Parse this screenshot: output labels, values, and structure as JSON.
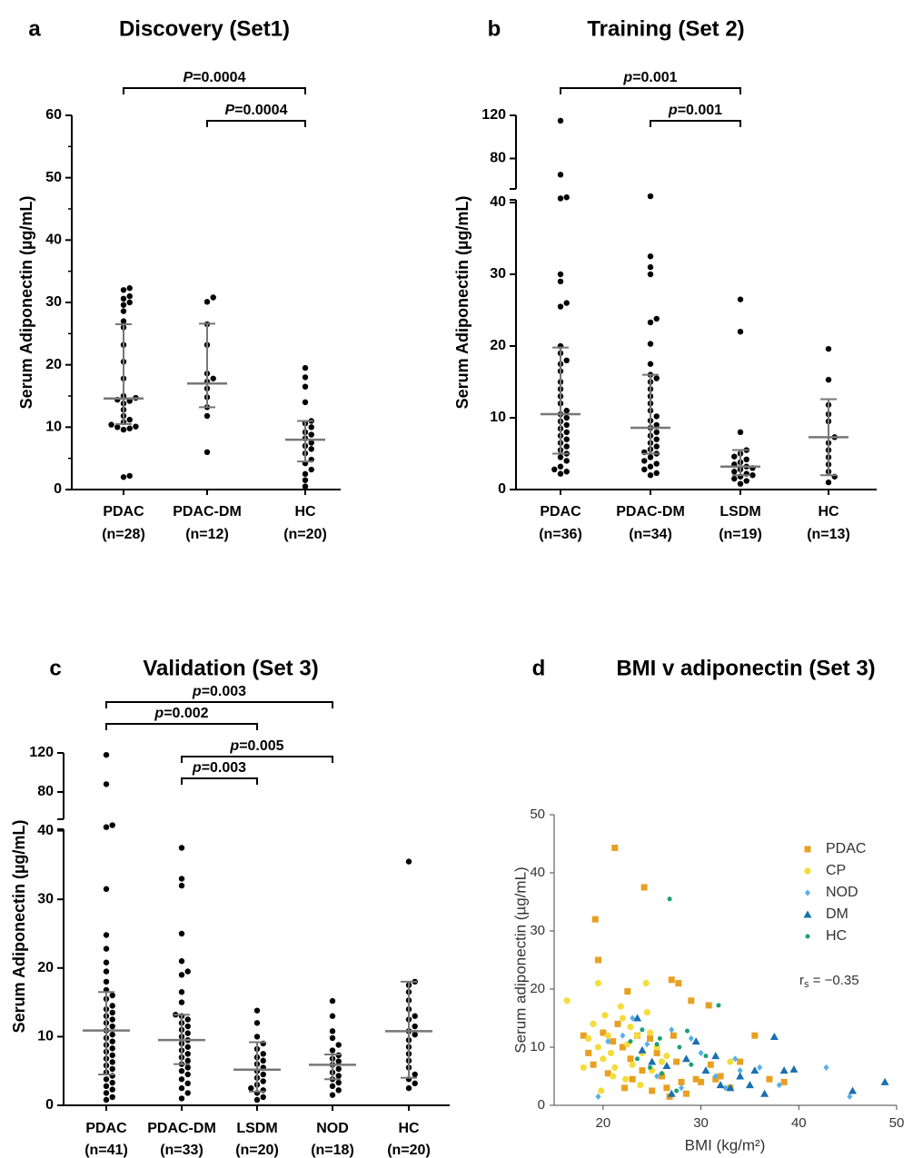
{
  "chart_data": [
    {
      "panel": "a",
      "type": "scatter",
      "title": "Discovery (Set1)",
      "ylabel": "Serum Adiponectin (µg/mL)",
      "ylim": [
        0,
        60
      ],
      "yticks": [
        0,
        10,
        20,
        30,
        40,
        50,
        60
      ],
      "groups": [
        {
          "label": "PDAC",
          "n": "(n=28)",
          "median": 14.6,
          "q1": 10.5,
          "q3": 26.5,
          "values": [
            2.0,
            2.2,
            9.6,
            9.8,
            10.0,
            10.1,
            10.4,
            10.8,
            11.2,
            11.8,
            12.8,
            13.8,
            14.2,
            14.4,
            14.7,
            15.0,
            17.8,
            20.5,
            23.2,
            26.0,
            27.0,
            28.6,
            29.6,
            30.0,
            30.6,
            31.0,
            32.0,
            32.3
          ]
        },
        {
          "label": "PDAC-DM",
          "n": "(n=12)",
          "median": 17.0,
          "q1": 13.2,
          "q3": 26.6,
          "values": [
            6.0,
            11.8,
            13.2,
            14.8,
            16.2,
            17.3,
            17.8,
            18.6,
            23.2,
            26.5,
            30.1,
            30.8
          ]
        },
        {
          "label": "HC",
          "n": "(n=20)",
          "median": 8.0,
          "q1": 4.5,
          "q3": 11.0,
          "values": [
            0.5,
            1.5,
            2.5,
            3.2,
            4.2,
            4.8,
            5.8,
            6.5,
            7.0,
            7.5,
            8.2,
            8.8,
            9.2,
            10.0,
            10.6,
            11.0,
            14.0,
            16.5,
            18.0,
            19.5
          ]
        }
      ],
      "brackets": [
        {
          "from": 0,
          "to": 2,
          "label": "=0.0004",
          "prefix": "P"
        },
        {
          "from": 1,
          "to": 2,
          "label": "=0.0004",
          "prefix": "P"
        }
      ]
    },
    {
      "panel": "b",
      "type": "scatter",
      "title": "Training (Set 2)",
      "ylabel": "Serum Adiponectin (µg/mL)",
      "ylim": [
        0,
        120
      ],
      "broken_axis": {
        "lower": [
          0,
          40
        ],
        "upper": [
          40,
          120
        ]
      },
      "yticks": [
        0,
        10,
        20,
        30,
        40,
        80,
        120
      ],
      "groups": [
        {
          "label": "PDAC",
          "n": "(n=36)",
          "median": 10.5,
          "q1": 5.0,
          "q3": 19.8,
          "values": [
            2.2,
            2.5,
            2.8,
            3.2,
            4.0,
            4.5,
            5.0,
            5.5,
            6.0,
            6.5,
            7.0,
            7.5,
            8.0,
            8.5,
            9.0,
            9.5,
            10.0,
            10.5,
            11.0,
            12.0,
            13.0,
            14.0,
            15.0,
            16.5,
            17.5,
            18.0,
            19.0,
            20.0,
            25.5,
            26.0,
            29.0,
            30.0,
            43.0,
            44.0,
            65.0,
            115.0
          ]
        },
        {
          "label": "PDAC-DM",
          "n": "(n=34)",
          "median": 8.6,
          "q1": 5.0,
          "q3": 16.0,
          "values": [
            2.0,
            2.3,
            2.8,
            3.2,
            3.6,
            4.0,
            4.5,
            5.0,
            5.2,
            5.6,
            6.0,
            6.5,
            7.0,
            7.5,
            8.0,
            8.6,
            9.0,
            9.6,
            10.2,
            11.0,
            12.0,
            13.0,
            14.0,
            15.0,
            15.5,
            16.0,
            17.5,
            20.3,
            23.3,
            23.8,
            30.0,
            31.0,
            32.5,
            45.0
          ]
        },
        {
          "label": "LSDM",
          "n": "(n=19)",
          "median": 3.2,
          "q1": 2.0,
          "q3": 5.5,
          "values": [
            0.8,
            1.2,
            1.5,
            1.8,
            2.0,
            2.2,
            2.5,
            2.8,
            3.0,
            3.2,
            3.5,
            3.8,
            4.2,
            4.6,
            5.0,
            5.5,
            8.0,
            22.0,
            26.5
          ]
        },
        {
          "label": "HC",
          "n": "(n=13)",
          "median": 7.3,
          "q1": 2.0,
          "q3": 12.6,
          "values": [
            1.0,
            1.8,
            2.5,
            3.5,
            4.5,
            5.5,
            6.5,
            7.3,
            9.5,
            10.5,
            11.8,
            15.3,
            19.6
          ]
        }
      ],
      "brackets": [
        {
          "from": 0,
          "to": 2,
          "label": "=0.001",
          "prefix": "p"
        },
        {
          "from": 1,
          "to": 2,
          "label": "=0.001",
          "prefix": "p"
        }
      ]
    },
    {
      "panel": "c",
      "type": "scatter",
      "title": "Validation (Set 3)",
      "ylabel": "Serum  Adiponectin (µg/mL)",
      "ylim": [
        0,
        120
      ],
      "broken_axis": {
        "lower": [
          0,
          40
        ],
        "upper": [
          40,
          120
        ]
      },
      "yticks": [
        0,
        10,
        20,
        30,
        40,
        80,
        120
      ],
      "groups": [
        {
          "label": "PDAC",
          "n": "(n=41)",
          "median": 10.9,
          "q1": 4.5,
          "q3": 16.5,
          "values": [
            0.8,
            1.2,
            1.8,
            2.3,
            2.8,
            3.3,
            3.8,
            4.3,
            4.8,
            5.3,
            5.8,
            6.3,
            6.8,
            7.3,
            7.8,
            8.3,
            8.8,
            9.3,
            9.8,
            10.3,
            10.9,
            11.5,
            12.0,
            12.5,
            13.0,
            13.5,
            14.0,
            14.5,
            15.5,
            16.0,
            16.8,
            18.0,
            19.5,
            20.8,
            22.8,
            24.8,
            31.5,
            44.0,
            46.0,
            88.0,
            118.0
          ]
        },
        {
          "label": "PDAC-DM",
          "n": "(n=33)",
          "median": 9.5,
          "q1": 6.0,
          "q3": 13.2,
          "values": [
            1.0,
            1.8,
            2.5,
            3.2,
            3.8,
            4.5,
            5.0,
            5.5,
            6.0,
            6.5,
            7.0,
            7.5,
            8.0,
            8.5,
            9.0,
            9.5,
            10.0,
            10.5,
            11.0,
            11.5,
            12.0,
            12.5,
            13.0,
            13.2,
            15.0,
            16.5,
            19.0,
            19.5,
            21.0,
            25.0,
            32.0,
            33.0,
            37.5
          ]
        },
        {
          "label": "LSDM",
          "n": "(n=20)",
          "median": 5.2,
          "q1": 2.0,
          "q3": 9.2,
          "values": [
            0.8,
            1.2,
            1.8,
            2.2,
            2.5,
            3.0,
            3.5,
            4.0,
            4.5,
            5.0,
            5.5,
            6.0,
            6.5,
            7.0,
            7.5,
            8.2,
            9.0,
            10.0,
            12.0,
            13.8
          ]
        },
        {
          "label": "NOD",
          "n": "(n=18)",
          "median": 5.9,
          "q1": 3.8,
          "q3": 7.4,
          "values": [
            1.5,
            2.2,
            2.8,
            3.3,
            3.8,
            4.3,
            4.8,
            5.3,
            5.9,
            6.4,
            6.8,
            7.3,
            8.0,
            8.8,
            9.8,
            10.8,
            13.0,
            15.2
          ]
        },
        {
          "label": "HC",
          "n": "(n=20)",
          "median": 10.8,
          "q1": 4.0,
          "q3": 18.0,
          "values": [
            2.5,
            3.2,
            3.8,
            4.5,
            5.5,
            6.5,
            7.5,
            8.5,
            9.5,
            10.3,
            10.8,
            11.5,
            12.5,
            13.0,
            14.0,
            15.3,
            16.5,
            17.5,
            18.0,
            35.5
          ]
        }
      ],
      "brackets": [
        {
          "from": 0,
          "to": 3,
          "label": "=0.003",
          "prefix": "p"
        },
        {
          "from": 0,
          "to": 2,
          "label": "=0.002",
          "prefix": "p"
        },
        {
          "from": 1,
          "to": 3,
          "label": "=0.005",
          "prefix": "p"
        },
        {
          "from": 1,
          "to": 2,
          "label": "=0.003",
          "prefix": "p"
        }
      ]
    },
    {
      "panel": "d",
      "type": "scatter",
      "title": "BMI v adiponectin (Set 3)",
      "xlabel": "BMI (kg/m²)",
      "ylabel": "Serum adiponectin (µg/mL)",
      "xlim": [
        15,
        50
      ],
      "ylim": [
        0,
        50
      ],
      "xticks": [
        20,
        30,
        40,
        50
      ],
      "yticks": [
        0,
        10,
        20,
        30,
        40,
        50
      ],
      "annotation": "r",
      "annotation_sub": "s",
      "annotation_rest": " = −0.35",
      "legend_position": "top-right",
      "series": [
        {
          "name": "PDAC",
          "color": "#e8a020",
          "marker": "square",
          "points": [
            [
              21.2,
              44.3
            ],
            [
              24.2,
              37.5
            ],
            [
              19.2,
              32.0
            ],
            [
              19.5,
              25.0
            ],
            [
              27.0,
              21.6
            ],
            [
              27.7,
              21.0
            ],
            [
              22.5,
              19.6
            ],
            [
              29.0,
              18.0
            ],
            [
              30.8,
              17.2
            ],
            [
              35.5,
              12.0
            ],
            [
              18.0,
              12.0
            ],
            [
              18.5,
              9.0
            ],
            [
              19.0,
              7.0
            ],
            [
              20.0,
              12.5
            ],
            [
              21.0,
              11.0
            ],
            [
              21.5,
              14.0
            ],
            [
              22.0,
              10.0
            ],
            [
              22.8,
              8.0
            ],
            [
              23.5,
              12.0
            ],
            [
              24.0,
              6.0
            ],
            [
              24.8,
              11.5
            ],
            [
              25.5,
              9.0
            ],
            [
              26.0,
              5.0
            ],
            [
              26.5,
              3.0
            ],
            [
              27.2,
              12.0
            ],
            [
              27.5,
              7.5
            ],
            [
              28.0,
              4.0
            ],
            [
              28.5,
              2.0
            ],
            [
              29.5,
              4.5
            ],
            [
              30.0,
              4.0
            ],
            [
              31.0,
              7.0
            ],
            [
              31.5,
              4.5
            ],
            [
              32.0,
              5.0
            ],
            [
              33.0,
              3.0
            ],
            [
              34.0,
              7.5
            ],
            [
              37.0,
              4.5
            ],
            [
              38.5,
              4.0
            ],
            [
              20.5,
              5.5
            ],
            [
              22.2,
              3.0
            ],
            [
              25.0,
              2.5
            ],
            [
              26.8,
              1.5
            ],
            [
              23.0,
              4.5
            ]
          ]
        },
        {
          "name": "CP",
          "color": "#f5dc3a",
          "marker": "circle",
          "points": [
            [
              16.3,
              18.0
            ],
            [
              19.5,
              21.0
            ],
            [
              24.4,
              21.0
            ],
            [
              18.0,
              6.5
            ],
            [
              19.0,
              14.0
            ],
            [
              19.5,
              10.0
            ],
            [
              20.0,
              8.0
            ],
            [
              20.5,
              12.0
            ],
            [
              21.0,
              5.0
            ],
            [
              21.8,
              17.0
            ],
            [
              22.0,
              15.0
            ],
            [
              22.5,
              10.5
            ],
            [
              23.0,
              7.0
            ],
            [
              23.5,
              12.0
            ],
            [
              24.0,
              9.0
            ],
            [
              24.5,
              16.0
            ],
            [
              25.0,
              6.0
            ],
            [
              25.5,
              10.0
            ],
            [
              26.0,
              7.5
            ],
            [
              19.8,
              2.5
            ],
            [
              21.2,
              6.5
            ],
            [
              22.8,
              13.5
            ],
            [
              18.5,
              11.5
            ],
            [
              20.2,
              15.5
            ],
            [
              23.8,
              3.5
            ],
            [
              24.8,
              12.5
            ],
            [
              26.5,
              8.5
            ],
            [
              33.0,
              7.5
            ],
            [
              20.8,
              9.0
            ],
            [
              22.3,
              4.5
            ]
          ]
        },
        {
          "name": "NOD",
          "color": "#55b0e8",
          "marker": "diamond",
          "points": [
            [
              19.5,
              1.5
            ],
            [
              20.5,
              11.0
            ],
            [
              23.0,
              15.0
            ],
            [
              24.5,
              10.5
            ],
            [
              25.5,
              5.0
            ],
            [
              27.0,
              13.0
            ],
            [
              29.0,
              11.5
            ],
            [
              30.0,
              9.0
            ],
            [
              31.5,
              5.0
            ],
            [
              32.5,
              3.0
            ],
            [
              34.0,
              6.0
            ],
            [
              36.0,
              6.5
            ],
            [
              38.0,
              3.5
            ],
            [
              42.8,
              6.5
            ],
            [
              45.2,
              1.5
            ],
            [
              28.0,
              3.0
            ],
            [
              33.5,
              8.0
            ],
            [
              22.0,
              12.0
            ]
          ]
        },
        {
          "name": "DM",
          "color": "#1a6fb0",
          "marker": "triangle",
          "points": [
            [
              23.5,
              15.0
            ],
            [
              24.0,
              9.5
            ],
            [
              25.0,
              7.5
            ],
            [
              26.5,
              6.8
            ],
            [
              27.0,
              2.0
            ],
            [
              29.5,
              11.0
            ],
            [
              30.5,
              6.0
            ],
            [
              31.5,
              8.5
            ],
            [
              33.0,
              3.0
            ],
            [
              34.0,
              5.0
            ],
            [
              35.0,
              3.5
            ],
            [
              35.5,
              6.0
            ],
            [
              37.5,
              11.8
            ],
            [
              38.5,
              6.0
            ],
            [
              39.5,
              6.2
            ],
            [
              45.5,
              2.5
            ],
            [
              48.8,
              4.0
            ],
            [
              28.5,
              8.0
            ],
            [
              32.0,
              3.5
            ],
            [
              36.5,
              2.0
            ]
          ]
        },
        {
          "name": "HC",
          "color": "#1aa078",
          "marker": "circle",
          "points": [
            [
              26.8,
              35.5
            ],
            [
              31.8,
              17.2
            ],
            [
              28.6,
              12.8
            ],
            [
              24.0,
              13.0
            ],
            [
              25.5,
              10.5
            ],
            [
              27.8,
              10.0
            ],
            [
              23.5,
              8.0
            ],
            [
              26.0,
              5.5
            ],
            [
              29.0,
              7.0
            ],
            [
              30.5,
              8.5
            ],
            [
              22.8,
              11.0
            ],
            [
              24.8,
              6.5
            ],
            [
              27.5,
              2.5
            ],
            [
              25.8,
              11.5
            ]
          ]
        }
      ]
    }
  ],
  "panel_letters": [
    "a",
    "b",
    "c",
    "d"
  ]
}
